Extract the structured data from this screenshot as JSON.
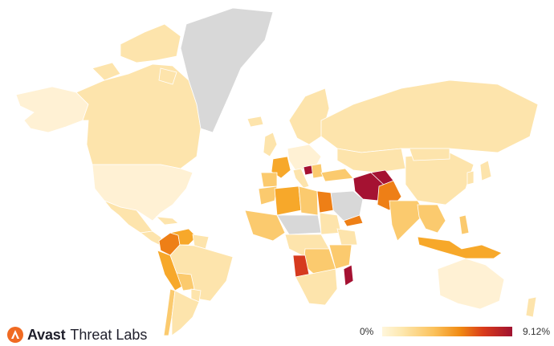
{
  "brand": {
    "name": "Avast",
    "product": "Threat Labs",
    "logo_icon": "avast-logo-icon",
    "logo_color": "#f06a22"
  },
  "legend": {
    "min_label": "0%",
    "max_label": "9.12%",
    "color_scale": [
      "#fff6dc",
      "#fde8b0",
      "#fbc15a",
      "#f08a13",
      "#d93a1b",
      "#a01230"
    ]
  },
  "map": {
    "no_data_color": "#d8d8d8",
    "colors": {
      "pale": "#fff1d4",
      "light": "#fde4ac",
      "mid": "#fbca6e",
      "orange": "#f7a82a",
      "dark_orange": "#ee7f16",
      "red": "#d63a1e",
      "crimson": "#a51232",
      "none": "#d8d8d8"
    }
  }
}
